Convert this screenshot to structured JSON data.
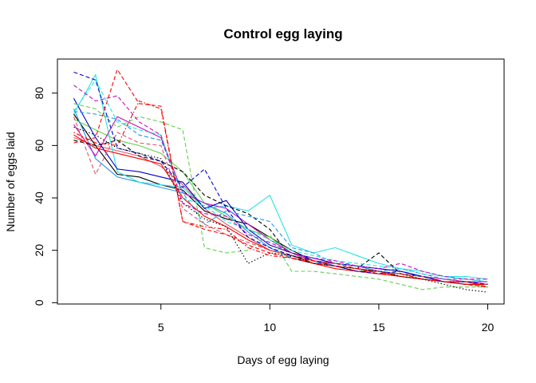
{
  "chart_data": {
    "type": "line",
    "title": "Control egg laying",
    "xlabel": "Days of egg laying",
    "ylabel": "Number of eggs laid",
    "xlim": [
      0.25,
      20.75
    ],
    "ylim": [
      -0.5,
      93
    ],
    "x_ticks": [
      5,
      10,
      15,
      20
    ],
    "y_ticks": [
      0,
      20,
      40,
      60,
      80
    ],
    "grid": false,
    "legend": "none",
    "x": [
      1,
      2,
      3,
      4,
      5,
      6,
      7,
      8,
      9,
      10,
      11,
      12,
      13,
      14,
      15,
      16,
      17,
      18,
      19,
      20
    ],
    "series": [
      {
        "color": "#000000",
        "dash": "solid",
        "values": [
          72,
          60,
          49,
          48,
          45,
          43,
          35,
          32,
          30,
          25,
          20,
          16,
          14,
          12,
          12,
          10,
          9,
          8,
          7,
          7
        ]
      },
      {
        "color": "#df536b",
        "dash": "solid",
        "values": [
          63,
          60,
          58,
          56,
          52,
          45,
          36,
          30,
          25,
          20,
          18,
          16,
          14,
          13,
          12,
          11,
          9,
          8,
          8,
          7
        ]
      },
      {
        "color": "#61d04f",
        "dash": "solid",
        "values": [
          70,
          66,
          62,
          60,
          57,
          50,
          38,
          33,
          28,
          25,
          19,
          15,
          14,
          13,
          12,
          11,
          9,
          8,
          8,
          6
        ]
      },
      {
        "color": "#2297e6",
        "dash": "solid",
        "values": [
          74,
          55,
          48,
          46,
          44,
          42,
          38,
          34,
          27,
          21,
          17,
          15,
          15,
          14,
          12,
          11,
          10,
          9,
          8,
          8
        ]
      },
      {
        "color": "#28e2e5",
        "dash": "solid",
        "values": [
          72,
          87,
          50,
          46,
          45,
          44,
          36,
          37,
          35,
          41,
          22,
          19,
          21,
          18,
          15,
          13,
          12,
          10,
          10,
          9
        ]
      },
      {
        "color": "#cd0bbc",
        "dash": "solid",
        "values": [
          68,
          56,
          71,
          67,
          63,
          42,
          38,
          36,
          30,
          24,
          19,
          16,
          15,
          14,
          13,
          12,
          10,
          9,
          8,
          8
        ]
      },
      {
        "color": "#0000cd",
        "dash": "solid",
        "values": [
          78,
          63,
          51,
          50,
          48,
          46,
          36,
          39,
          28,
          22,
          19,
          17,
          15,
          14,
          13,
          12,
          10,
          8,
          8,
          7
        ]
      },
      {
        "color": "#ff0000",
        "dash": "solid",
        "values": [
          64,
          59,
          57,
          55,
          53,
          40,
          33,
          29,
          24,
          20,
          18,
          15,
          13,
          12,
          11,
          10,
          9,
          8,
          7,
          7
        ]
      },
      {
        "color": "#000000",
        "dash": "dashed",
        "values": [
          62,
          60,
          62,
          56,
          54,
          50,
          41,
          37,
          34,
          28,
          17,
          15,
          14,
          13,
          19,
          11,
          10,
          8,
          7,
          6
        ]
      },
      {
        "color": "#df536b",
        "dash": "dashed",
        "values": [
          71,
          49,
          65,
          61,
          60,
          36,
          30,
          26,
          23,
          20,
          18,
          16,
          14,
          13,
          12,
          11,
          10,
          9,
          8,
          7
        ]
      },
      {
        "color": "#61d04f",
        "dash": "dashed",
        "values": [
          76,
          74,
          67,
          71,
          69,
          66,
          21,
          19,
          20,
          26,
          12,
          12,
          11,
          10,
          9,
          7,
          5,
          6,
          6,
          6
        ]
      },
      {
        "color": "#2297e6",
        "dash": "dashed",
        "values": [
          73,
          72,
          70,
          64,
          62,
          42,
          30,
          35,
          33,
          31,
          21,
          19,
          15,
          14,
          12,
          13,
          11,
          9,
          9,
          8
        ]
      },
      {
        "color": "#28e2e5",
        "dash": "dashed",
        "values": [
          73,
          85,
          69,
          66,
          64,
          40,
          37,
          31,
          28,
          24,
          20,
          18,
          16,
          15,
          14,
          13,
          11,
          10,
          9,
          8
        ]
      },
      {
        "color": "#cd0bbc",
        "dash": "dashed",
        "values": [
          83,
          77,
          79,
          69,
          64,
          38,
          34,
          33,
          26,
          23,
          19,
          17,
          16,
          14,
          13,
          15,
          12,
          10,
          9,
          9
        ]
      },
      {
        "color": "#0000cd",
        "dash": "dashed",
        "values": [
          88,
          85,
          59,
          57,
          54,
          44,
          51,
          36,
          25,
          21,
          18,
          16,
          14,
          12,
          11,
          12,
          10,
          8,
          8,
          7
        ]
      },
      {
        "color": "#ff0000",
        "dash": "dashed",
        "values": [
          61,
          63,
          89,
          76,
          75,
          31,
          28,
          26,
          22,
          19,
          17,
          16,
          15,
          13,
          12,
          10,
          9,
          8,
          7,
          6
        ]
      },
      {
        "color": "#000000",
        "dash": "dotted",
        "values": [
          67,
          64,
          59,
          57,
          55,
          38,
          32,
          29,
          15,
          19,
          18,
          15,
          14,
          13,
          12,
          10,
          9,
          7,
          5,
          4
        ]
      },
      {
        "color": "#ff0000",
        "dash": "dotdash",
        "values": [
          65,
          61,
          60,
          77,
          74,
          31,
          29,
          28,
          21,
          18,
          17,
          15,
          14,
          13,
          11,
          11,
          9,
          8,
          8,
          6
        ]
      }
    ]
  }
}
